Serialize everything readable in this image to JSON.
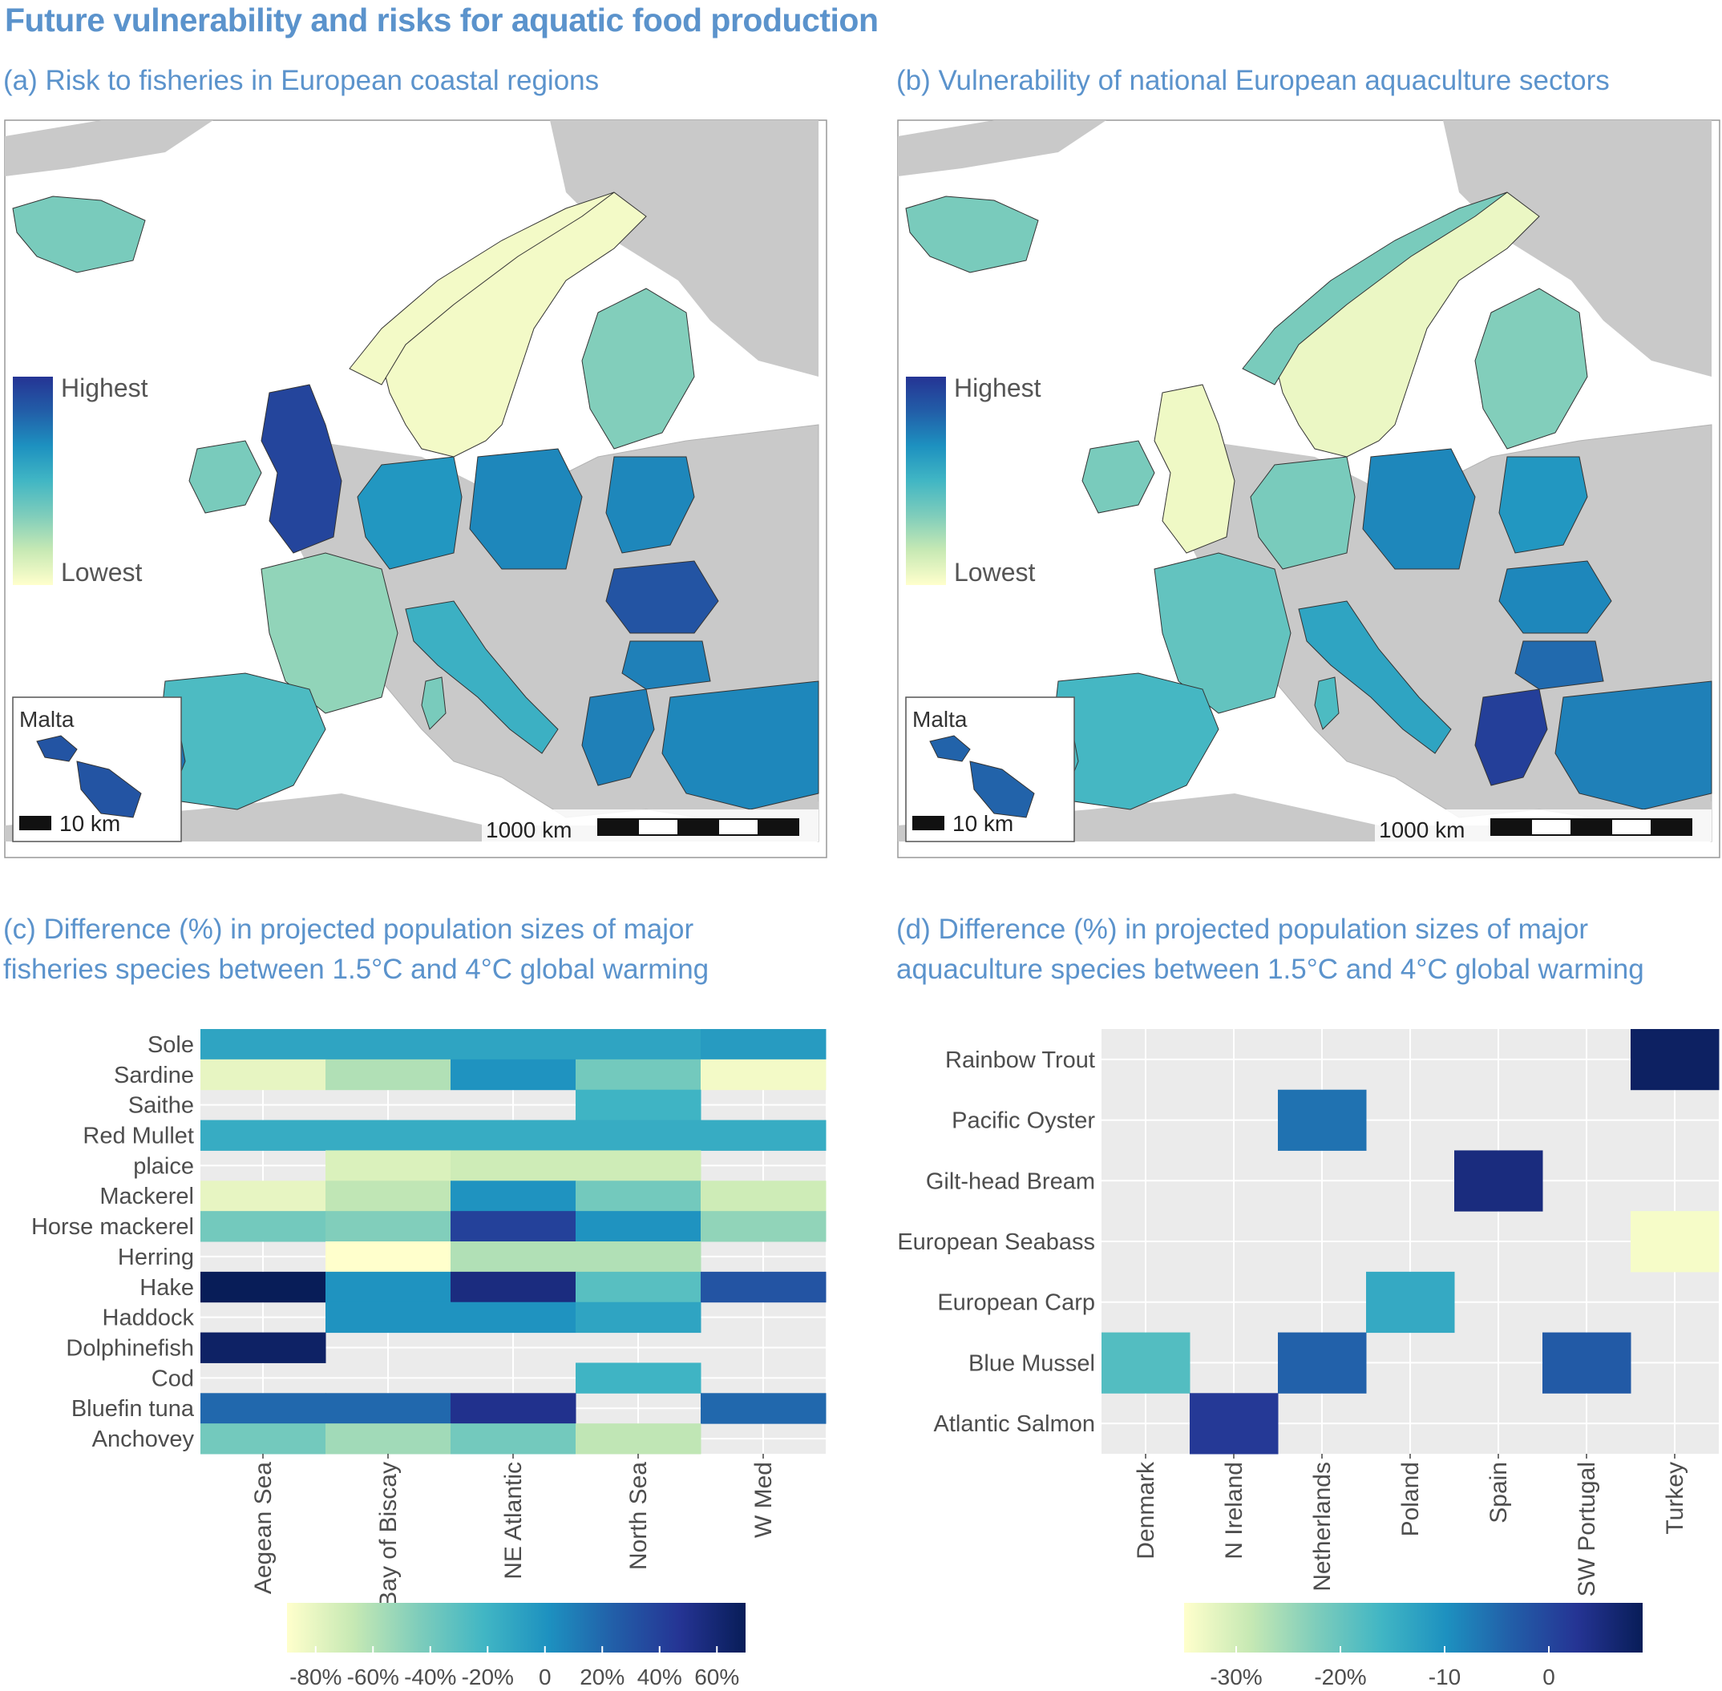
{
  "figure": {
    "title": "Future vulnerability and risks for aquatic food production",
    "panel_a_title": "(a) Risk to fisheries in European coastal regions",
    "panel_b_title": "(b) Vulnerability of national European aquaculture sectors",
    "panel_c_title_1": "(c) Difference (%) in projected population sizes of major",
    "panel_c_title_2": "fisheries species between 1.5°C and 4°C global warming",
    "panel_d_title_1": "(d) Difference (%) in projected population sizes of major",
    "panel_d_title_2": "aquaculture species between 1.5°C and 4°C global warming"
  },
  "maps": {
    "legend_high": "Highest",
    "legend_low": "Lowest",
    "inset_label": "Malta",
    "inset_scale": "10 km",
    "scale_label": "1000 km",
    "colors": {
      "land": "#c9c9c9",
      "sea": "#ffffff",
      "low": "#f5f5c4",
      "mid": "#41b6c4",
      "high": "#253494"
    }
  },
  "colorscale": [
    "#ffffcc",
    "#c7e9b4",
    "#7fcdbb",
    "#41b6c4",
    "#1d91c0",
    "#225ea8",
    "#253494",
    "#081d58"
  ],
  "chart_data": [
    {
      "type": "heatmap",
      "panel": "c",
      "x_categories": [
        "Aegean Sea",
        "Bay of Biscay",
        "NE Atlantic",
        "North Sea",
        "W Med"
      ],
      "y_categories": [
        "Sole",
        "Sardine",
        "Saithe",
        "Red Mullet",
        "plaice",
        "Mackerel",
        "Horse mackerel",
        "Herring",
        "Hake",
        "Haddock",
        "Dolphinefish",
        "Cod",
        "Bluefin tuna",
        "Anchovey"
      ],
      "values": [
        [
          -10,
          -10,
          -10,
          -10,
          -5
        ],
        [
          -80,
          -60,
          0,
          -40,
          -85
        ],
        [
          null,
          null,
          null,
          -20,
          null
        ],
        [
          -15,
          -15,
          -15,
          -15,
          -15
        ],
        [
          null,
          -75,
          -70,
          -70,
          null
        ],
        [
          -80,
          -65,
          0,
          -40,
          -70
        ],
        [
          -40,
          -45,
          40,
          0,
          -50
        ],
        [
          null,
          -90,
          -60,
          -60,
          null
        ],
        [
          90,
          0,
          55,
          -30,
          30
        ],
        [
          null,
          0,
          0,
          -10,
          null
        ],
        [
          65,
          null,
          null,
          null,
          null
        ],
        [
          null,
          null,
          null,
          -20,
          null
        ],
        [
          20,
          20,
          50,
          null,
          20
        ],
        [
          -40,
          -55,
          -40,
          -65,
          null
        ]
      ],
      "colorbar": {
        "min": -90,
        "max": 70,
        "tick_values": [
          -80,
          -60,
          -40,
          -20,
          0,
          20,
          40,
          60
        ],
        "tick_labels": [
          "-80%",
          "-60%",
          "-40%",
          "-20%",
          "0",
          "20%",
          "40%",
          "60%"
        ]
      }
    },
    {
      "type": "heatmap",
      "panel": "d",
      "x_categories": [
        "Denmark",
        "N Ireland",
        "Netherlands",
        "Poland",
        "Spain",
        "SW Portugal",
        "Turkey"
      ],
      "y_categories": [
        "Rainbow Trout",
        "Pacific Oyster",
        "Gilt-head Bream",
        "European Seabass",
        "European Carp",
        "Blue Mussel",
        "Atlantic Salmon"
      ],
      "values": [
        [
          null,
          null,
          null,
          null,
          null,
          null,
          8
        ],
        [
          null,
          null,
          -6,
          null,
          null,
          null,
          null
        ],
        [
          null,
          null,
          null,
          null,
          5,
          null,
          null
        ],
        [
          null,
          null,
          null,
          null,
          null,
          null,
          -34
        ],
        [
          null,
          null,
          null,
          -14,
          null,
          null,
          null
        ],
        [
          -18,
          null,
          -4,
          null,
          null,
          -3,
          null
        ],
        [
          null,
          2,
          null,
          null,
          null,
          null,
          null
        ]
      ],
      "colorbar": {
        "min": -35,
        "max": 9,
        "tick_values": [
          -30,
          -20,
          -10,
          0
        ],
        "tick_labels": [
          "-30%",
          "-20%",
          "-10",
          "0"
        ]
      }
    }
  ]
}
